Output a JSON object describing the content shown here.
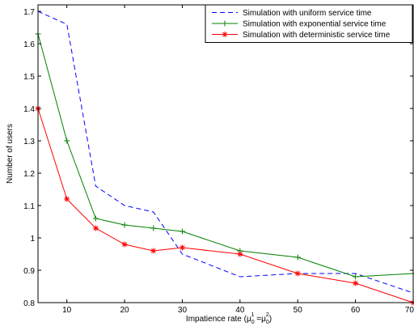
{
  "chart_data": {
    "type": "line",
    "title": "",
    "xlabel": "Impatience rate (μ",
    "xlabel_sub1": "0",
    "xlabel_sup1": "1",
    "xlabel_eq": " =μ",
    "xlabel_sub2": "0",
    "xlabel_sup2": "2",
    "xlabel_close": ")",
    "ylabel": "Number of users",
    "xlim": [
      5,
      70
    ],
    "ylim": [
      0.8,
      1.72
    ],
    "x_ticks": [
      10,
      20,
      30,
      40,
      50,
      60,
      70
    ],
    "y_ticks": [
      0.8,
      0.9,
      1.0,
      1.1,
      1.2,
      1.3,
      1.4,
      1.5,
      1.6,
      1.7
    ],
    "y_tick_labels": [
      "0.8",
      "0.9",
      "1",
      "1.1",
      "1.2",
      "1.3",
      "1.4",
      "1.5",
      "1.6",
      "1.7"
    ],
    "legend_position": "top-right",
    "grid": false,
    "series": [
      {
        "name": "Simulation with uniform service time",
        "color": "#0000ff",
        "style": "dashed",
        "marker": "none",
        "x": [
          5,
          10,
          15,
          20,
          25,
          30,
          40,
          50,
          60,
          70
        ],
        "y": [
          1.7,
          1.66,
          1.16,
          1.1,
          1.08,
          0.95,
          0.88,
          0.89,
          0.89,
          0.83
        ]
      },
      {
        "name": "Simulation with exponential service time",
        "color": "#008000",
        "style": "solid",
        "marker": "plus",
        "x": [
          5,
          10,
          15,
          20,
          25,
          30,
          40,
          50,
          60,
          70
        ],
        "y": [
          1.63,
          1.3,
          1.06,
          1.04,
          1.03,
          1.02,
          0.96,
          0.94,
          0.88,
          0.89
        ]
      },
      {
        "name": "Simulation with deterministic service time",
        "color": "#ff0000",
        "style": "solid",
        "marker": "star",
        "x": [
          5,
          10,
          15,
          20,
          25,
          30,
          40,
          50,
          60,
          70
        ],
        "y": [
          1.4,
          1.12,
          1.03,
          0.98,
          0.96,
          0.97,
          0.95,
          0.89,
          0.86,
          0.8
        ]
      }
    ]
  }
}
